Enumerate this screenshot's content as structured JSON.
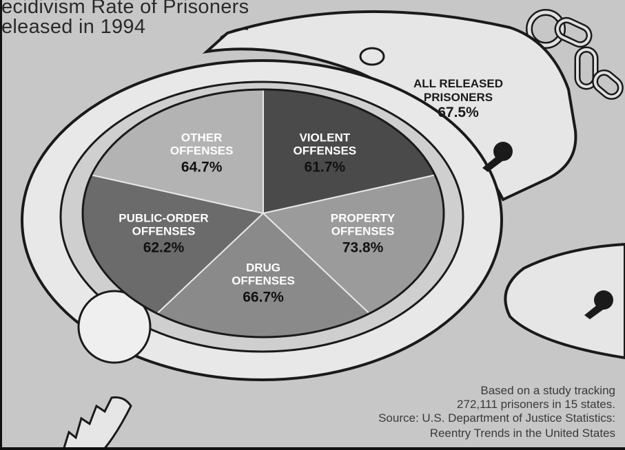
{
  "title_lines": [
    "ecidivism Rate of Prisoners",
    "eleased in 1994"
  ],
  "chart_data": {
    "type": "pie",
    "title": "ecidivism Rate of Prisoners eleased in 1994",
    "slices": [
      {
        "label": [
          "VIOLENT",
          "OFFENSES"
        ],
        "value_label": "61.7%",
        "value": 61.7,
        "color": "#4a4a4a",
        "text_color": "#ffffff",
        "value_color": "#111111"
      },
      {
        "label": [
          "PROPERTY",
          "OFFENSES"
        ],
        "value_label": "73.8%",
        "value": 73.8,
        "color": "#9b9b9b",
        "text_color": "#ffffff",
        "value_color": "#111111"
      },
      {
        "label": [
          "DRUG",
          "OFFENSES"
        ],
        "value_label": "66.7%",
        "value": 66.7,
        "color": "#8a8a8a",
        "text_color": "#ffffff",
        "value_color": "#111111"
      },
      {
        "label": [
          "PUBLIC-ORDER",
          "OFFENSES"
        ],
        "value_label": "62.2%",
        "value": 62.2,
        "color": "#6b6b6b",
        "text_color": "#ffffff",
        "value_color": "#111111"
      },
      {
        "label": [
          "OTHER",
          "OFFENSES"
        ],
        "value_label": "64.7%",
        "value": 64.7,
        "color": "#b3b3b3",
        "text_color": "#ffffff",
        "value_color": "#111111"
      }
    ],
    "annotation": {
      "label": [
        "ALL RELEASED",
        "PRISONERS"
      ],
      "value_label": "67.5%",
      "value": 67.5
    }
  },
  "notes": [
    "Based on a study tracking",
    "272,111 prisoners in 15 states.",
    "Source: U.S. Department of Justice Statistics:",
    "Reentry Trends in the United States"
  ]
}
